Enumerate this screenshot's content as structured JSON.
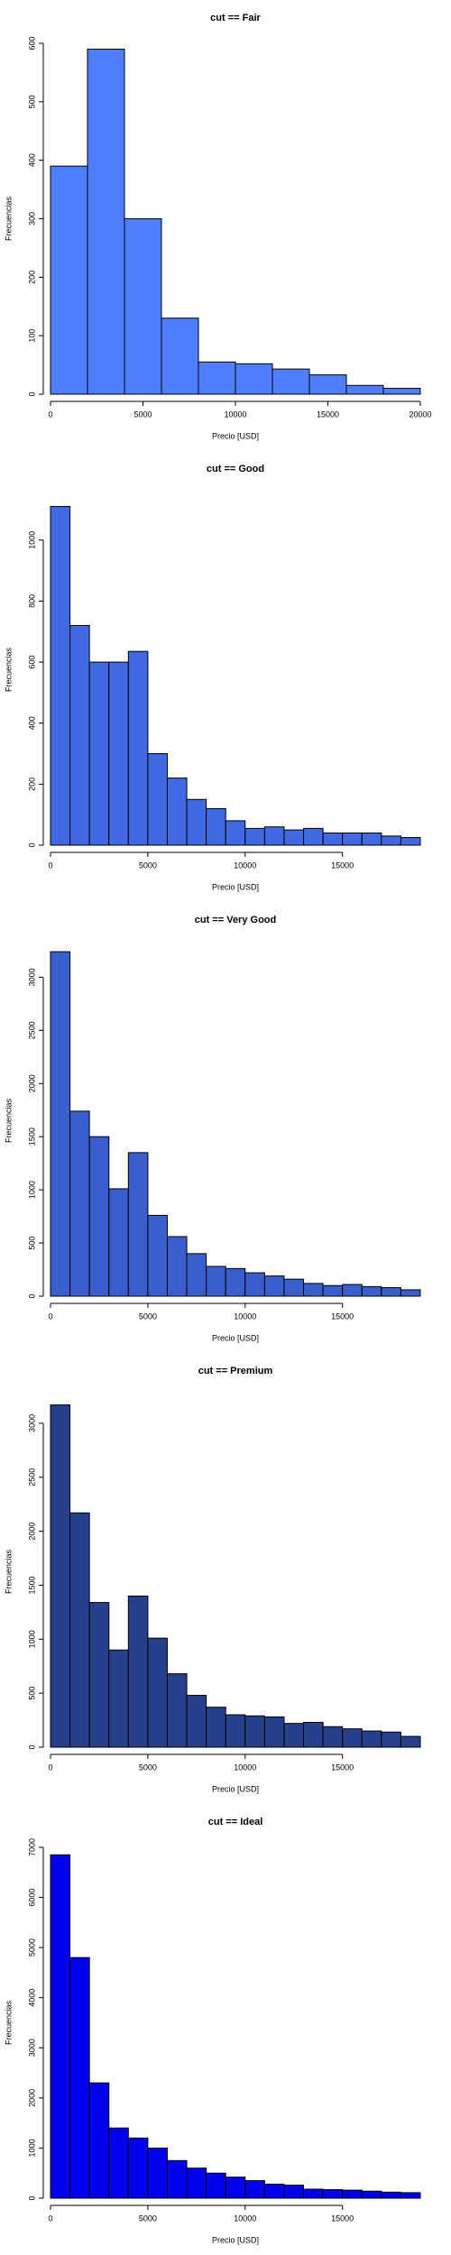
{
  "chart_data": [
    {
      "type": "histogram",
      "title": "cut == Fair",
      "x_label": "Precio [USD]",
      "y_label": "Frecuencias",
      "color": "#4f7fff",
      "bins": [
        0,
        2000,
        4000,
        6000,
        8000,
        10000,
        12000,
        14000,
        16000,
        18000,
        20000
      ],
      "values": [
        390,
        590,
        300,
        130,
        55,
        52,
        43,
        33,
        15,
        10
      ],
      "xlim": [
        0,
        20000
      ],
      "xticks": [
        0,
        5000,
        10000,
        15000,
        20000
      ],
      "ylim": [
        0,
        600
      ],
      "yticks": [
        0,
        100,
        200,
        300,
        400,
        500,
        600
      ]
    },
    {
      "type": "histogram",
      "title": "cut == Good",
      "x_label": "Precio [USD]",
      "y_label": "Frecuencias",
      "color": "#4169e1",
      "bins": [
        0,
        1000,
        2000,
        3000,
        4000,
        5000,
        6000,
        7000,
        8000,
        9000,
        10000,
        11000,
        12000,
        13000,
        14000,
        15000,
        16000,
        17000,
        18000,
        19000
      ],
      "values": [
        1110,
        720,
        600,
        600,
        635,
        300,
        220,
        150,
        120,
        80,
        55,
        60,
        50,
        55,
        40,
        40,
        40,
        30,
        25
      ],
      "xlim": [
        0,
        19000
      ],
      "xticks": [
        0,
        5000,
        10000,
        15000
      ],
      "ylim": [
        0,
        1150
      ],
      "yticks": [
        0,
        200,
        400,
        600,
        800,
        1000
      ]
    },
    {
      "type": "histogram",
      "title": "cut == Very Good",
      "x_label": "Precio [USD]",
      "y_label": "Frecuencias",
      "color": "#3a5fcd",
      "bins": [
        0,
        1000,
        2000,
        3000,
        4000,
        5000,
        6000,
        7000,
        8000,
        9000,
        10000,
        11000,
        12000,
        13000,
        14000,
        15000,
        16000,
        17000,
        18000,
        19000
      ],
      "values": [
        3240,
        1740,
        1500,
        1010,
        1350,
        760,
        560,
        400,
        280,
        260,
        220,
        190,
        160,
        120,
        100,
        110,
        90,
        80,
        60
      ],
      "xlim": [
        0,
        19000
      ],
      "xticks": [
        0,
        5000,
        10000,
        15000
      ],
      "ylim": [
        0,
        3300
      ],
      "yticks": [
        0,
        500,
        1000,
        1500,
        2000,
        2500,
        3000
      ]
    },
    {
      "type": "histogram",
      "title": "cut == Premium",
      "x_label": "Precio [USD]",
      "y_label": "Frecuencias",
      "color": "#27408b",
      "bins": [
        0,
        1000,
        2000,
        3000,
        4000,
        5000,
        6000,
        7000,
        8000,
        9000,
        10000,
        11000,
        12000,
        13000,
        14000,
        15000,
        16000,
        17000,
        18000,
        19000
      ],
      "values": [
        3170,
        2170,
        1340,
        900,
        1400,
        1010,
        680,
        480,
        370,
        300,
        290,
        280,
        220,
        230,
        190,
        170,
        150,
        140,
        100
      ],
      "xlim": [
        0,
        19000
      ],
      "xticks": [
        0,
        5000,
        10000,
        15000
      ],
      "ylim": [
        0,
        3250
      ],
      "yticks": [
        0,
        500,
        1000,
        1500,
        2000,
        2500,
        3000
      ]
    },
    {
      "type": "histogram",
      "title": "cut == Ideal",
      "x_label": "Precio [USD]",
      "y_label": "Frecuencias",
      "color": "#0000ee",
      "bins": [
        0,
        1000,
        2000,
        3000,
        4000,
        5000,
        6000,
        7000,
        8000,
        9000,
        10000,
        11000,
        12000,
        13000,
        14000,
        15000,
        16000,
        17000,
        18000,
        19000
      ],
      "values": [
        6850,
        4800,
        2300,
        1400,
        1200,
        1000,
        750,
        600,
        500,
        420,
        350,
        280,
        260,
        180,
        170,
        160,
        140,
        120,
        110
      ],
      "xlim": [
        0,
        19000
      ],
      "xticks": [
        0,
        5000,
        10000,
        15000
      ],
      "ylim": [
        0,
        7000
      ],
      "yticks": [
        0,
        1000,
        2000,
        3000,
        4000,
        5000,
        6000,
        7000
      ]
    }
  ]
}
